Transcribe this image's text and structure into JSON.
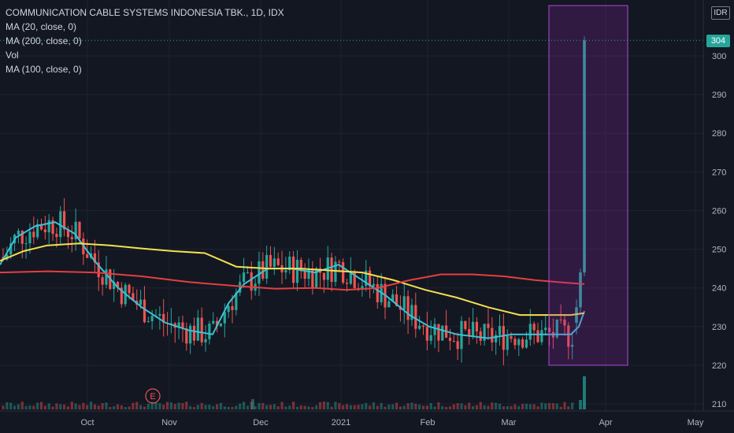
{
  "header": {
    "title": "COMMUNICATION CABLE SYSTEMS INDONESIA TBK., 1D, IDX",
    "indicators": [
      "MA (20, close, 0)",
      "MA (200, close, 0)",
      "Vol",
      "MA (100, close, 0)"
    ]
  },
  "currency": "IDR",
  "last_price_label": "304",
  "colors": {
    "background": "#131722",
    "up": "#26a69a",
    "down": "#ef5350",
    "ma20": "#3ec1da",
    "ma100": "#f4e04d",
    "ma200": "#e53f3f",
    "highlight_fill": "#9c27b0",
    "grid": "#1f2330"
  },
  "earnings_marker": "E",
  "chart_data": {
    "type": "candlestick",
    "x_ticks": [
      "Oct",
      "Nov",
      "Dec",
      "2021",
      "Feb",
      "Mar",
      "Apr",
      "May"
    ],
    "y_ticks": [
      210,
      220,
      230,
      240,
      250,
      260,
      270,
      280,
      290,
      300
    ],
    "ylim": [
      209,
      312
    ],
    "last_price": 304,
    "series": [
      {
        "name": "MA (20, close, 0)",
        "color": "#3ec1da",
        "points": [
          [
            0,
            246
          ],
          [
            20,
            253
          ],
          [
            45,
            256
          ],
          [
            70,
            257
          ],
          [
            95,
            254
          ],
          [
            120,
            247
          ],
          [
            150,
            240
          ],
          [
            180,
            235
          ],
          [
            210,
            231
          ],
          [
            240,
            229
          ],
          [
            270,
            228
          ],
          [
            290,
            236
          ],
          [
            310,
            241
          ],
          [
            340,
            245
          ],
          [
            370,
            245
          ],
          [
            400,
            244
          ],
          [
            430,
            246
          ],
          [
            460,
            242
          ],
          [
            490,
            238
          ],
          [
            520,
            233
          ],
          [
            545,
            230
          ],
          [
            580,
            228
          ],
          [
            620,
            227
          ],
          [
            650,
            228
          ],
          [
            700,
            228
          ],
          [
            725,
            228
          ],
          [
            735,
            230
          ],
          [
            742,
            234
          ]
        ]
      },
      {
        "name": "MA (100, close, 0)",
        "color": "#f4e04d",
        "points": [
          [
            0,
            247
          ],
          [
            30,
            249.5
          ],
          [
            60,
            251
          ],
          [
            100,
            251.5
          ],
          [
            140,
            251
          ],
          [
            180,
            250.2
          ],
          [
            220,
            249.5
          ],
          [
            260,
            249
          ],
          [
            300,
            245.5
          ],
          [
            340,
            245
          ],
          [
            380,
            245
          ],
          [
            420,
            244.5
          ],
          [
            460,
            244
          ],
          [
            500,
            242
          ],
          [
            540,
            239.5
          ],
          [
            580,
            237.5
          ],
          [
            620,
            235
          ],
          [
            660,
            233
          ],
          [
            700,
            233
          ],
          [
            725,
            233
          ],
          [
            742,
            233.5
          ]
        ]
      },
      {
        "name": "MA (200, close, 0)",
        "color": "#e53f3f",
        "points": [
          [
            0,
            244
          ],
          [
            60,
            244.3
          ],
          [
            120,
            244
          ],
          [
            180,
            243
          ],
          [
            240,
            241.5
          ],
          [
            300,
            240.5
          ],
          [
            350,
            239.8
          ],
          [
            400,
            240
          ],
          [
            440,
            239.5
          ],
          [
            480,
            240
          ],
          [
            520,
            242
          ],
          [
            560,
            243.5
          ],
          [
            600,
            243.5
          ],
          [
            640,
            243
          ],
          [
            680,
            242
          ],
          [
            720,
            241.3
          ],
          [
            742,
            241
          ]
        ]
      },
      {
        "name": "Vol",
        "type": "volume",
        "values": []
      }
    ],
    "highlight_box": {
      "x_from": 697,
      "x_to": 797,
      "y_from": 220,
      "y_to": 313
    }
  }
}
